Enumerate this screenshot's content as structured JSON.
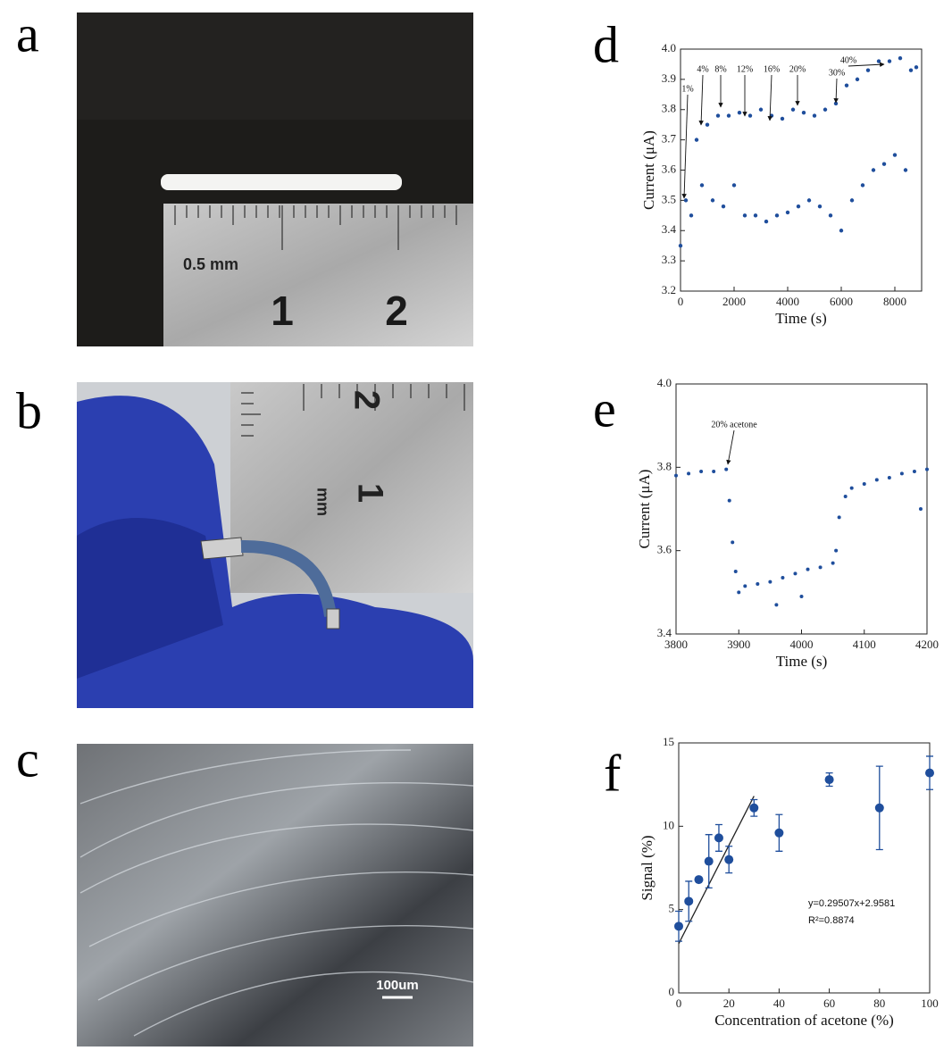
{
  "panels": [
    "a",
    "b",
    "c",
    "d",
    "e",
    "f"
  ],
  "photos": {
    "a": [
      "0.5 mm",
      "1",
      "2"
    ],
    "b": [
      "2",
      "1",
      "mm"
    ],
    "c": [
      "100um"
    ]
  },
  "chart_data": [
    {
      "type": "scatter",
      "color": "#1f4e9c",
      "x_label": "Time (s)",
      "y_label": "Current (μA)",
      "x": [
        0,
        200,
        400,
        600,
        800,
        1000,
        1200,
        1400,
        1600,
        1800,
        2000,
        2200,
        2400,
        2600,
        2800,
        3000,
        3200,
        3400,
        3600,
        3800,
        4000,
        4200,
        4400,
        4600,
        4800,
        5000,
        5200,
        5400,
        5600,
        5800,
        6000,
        6200,
        6400,
        6600,
        6800,
        7000,
        7200,
        7400,
        7600,
        7800,
        8000,
        8200,
        8400,
        8600,
        8800
      ],
      "values": [
        3.35,
        3.5,
        3.45,
        3.7,
        3.55,
        3.75,
        3.5,
        3.78,
        3.48,
        3.78,
        3.55,
        3.79,
        3.45,
        3.78,
        3.45,
        3.8,
        3.43,
        3.78,
        3.45,
        3.77,
        3.46,
        3.8,
        3.48,
        3.79,
        3.5,
        3.78,
        3.48,
        3.8,
        3.45,
        3.82,
        3.4,
        3.88,
        3.5,
        3.9,
        3.55,
        3.93,
        3.6,
        3.96,
        3.62,
        3.96,
        3.65,
        3.97,
        3.6,
        3.93,
        3.94
      ],
      "xlim": [
        0,
        9000
      ],
      "xticks": [
        0,
        2000,
        4000,
        6000,
        8000
      ],
      "ylim": [
        3.2,
        4.0
      ],
      "yticks": [
        {
          "value": 3.2,
          "label": "3.2"
        },
        {
          "value": 3.3,
          "label": "3.3"
        },
        {
          "value": 3.4,
          "label": "3.4"
        },
        {
          "value": 3.5,
          "label": "3.5"
        },
        {
          "value": 3.6,
          "label": "3.6"
        },
        {
          "value": 3.7,
          "label": "3.7"
        },
        {
          "value": 3.8,
          "label": "3.8"
        },
        {
          "value": 3.9,
          "label": "3.9"
        },
        {
          "value": 4.0,
          "label": "4.0"
        }
      ],
      "annotations": [
        "1%",
        "4%",
        "8%",
        "12%",
        "16%",
        "20%",
        "30%",
        "40%"
      ]
    },
    {
      "type": "scatter",
      "color": "#1f4e9c",
      "x_label": "Time (s)",
      "y_label": "Current (μA)",
      "x": [
        3800,
        3820,
        3840,
        3860,
        3880,
        3885,
        3890,
        3895,
        3900,
        3910,
        3930,
        3950,
        3960,
        3970,
        3990,
        4000,
        4010,
        4030,
        4050,
        4055,
        4060,
        4070,
        4080,
        4100,
        4120,
        4140,
        4160,
        4180,
        4190,
        4200
      ],
      "values": [
        3.78,
        3.785,
        3.79,
        3.79,
        3.795,
        3.72,
        3.62,
        3.55,
        3.5,
        3.515,
        3.52,
        3.525,
        3.47,
        3.535,
        3.545,
        3.49,
        3.555,
        3.56,
        3.57,
        3.6,
        3.68,
        3.73,
        3.75,
        3.76,
        3.77,
        3.775,
        3.785,
        3.79,
        3.7,
        3.795
      ],
      "xlim": [
        3800,
        4200
      ],
      "xticks": [
        3800,
        3900,
        4000,
        4100,
        4200
      ],
      "ylim": [
        3.4,
        4.0
      ],
      "yticks": [
        {
          "value": 3.4,
          "label": "3.4"
        },
        {
          "value": 3.6,
          "label": "3.6"
        },
        {
          "value": 3.8,
          "label": "3.8"
        },
        {
          "value": 4.0,
          "label": "4.0"
        }
      ],
      "annotations": [
        "20% acetone"
      ]
    },
    {
      "type": "scatter",
      "color": "#1f4e9c",
      "x_label": "Concentration of acetone (%)",
      "y_label": "Signal (%)",
      "x": [
        0,
        4,
        8,
        12,
        16,
        20,
        30,
        40,
        60,
        80,
        100
      ],
      "values": [
        4.0,
        5.5,
        6.8,
        7.9,
        9.3,
        8.0,
        11.1,
        9.6,
        12.8,
        11.1,
        13.2
      ],
      "errors": [
        0.9,
        1.2,
        0.1,
        1.6,
        0.8,
        0.8,
        0.5,
        1.1,
        0.4,
        2.5,
        1.0
      ],
      "fit_line": {
        "x": [
          0,
          30
        ],
        "y": [
          2.9581,
          11.81
        ]
      },
      "xlim": [
        0,
        100
      ],
      "xticks": [
        0,
        20,
        40,
        60,
        80,
        100
      ],
      "ylim": [
        0,
        15
      ],
      "yticks": [
        0,
        5,
        10,
        15
      ],
      "annotations": [
        "y=0.29507x+2.9581",
        "R²=0.8874"
      ]
    }
  ]
}
